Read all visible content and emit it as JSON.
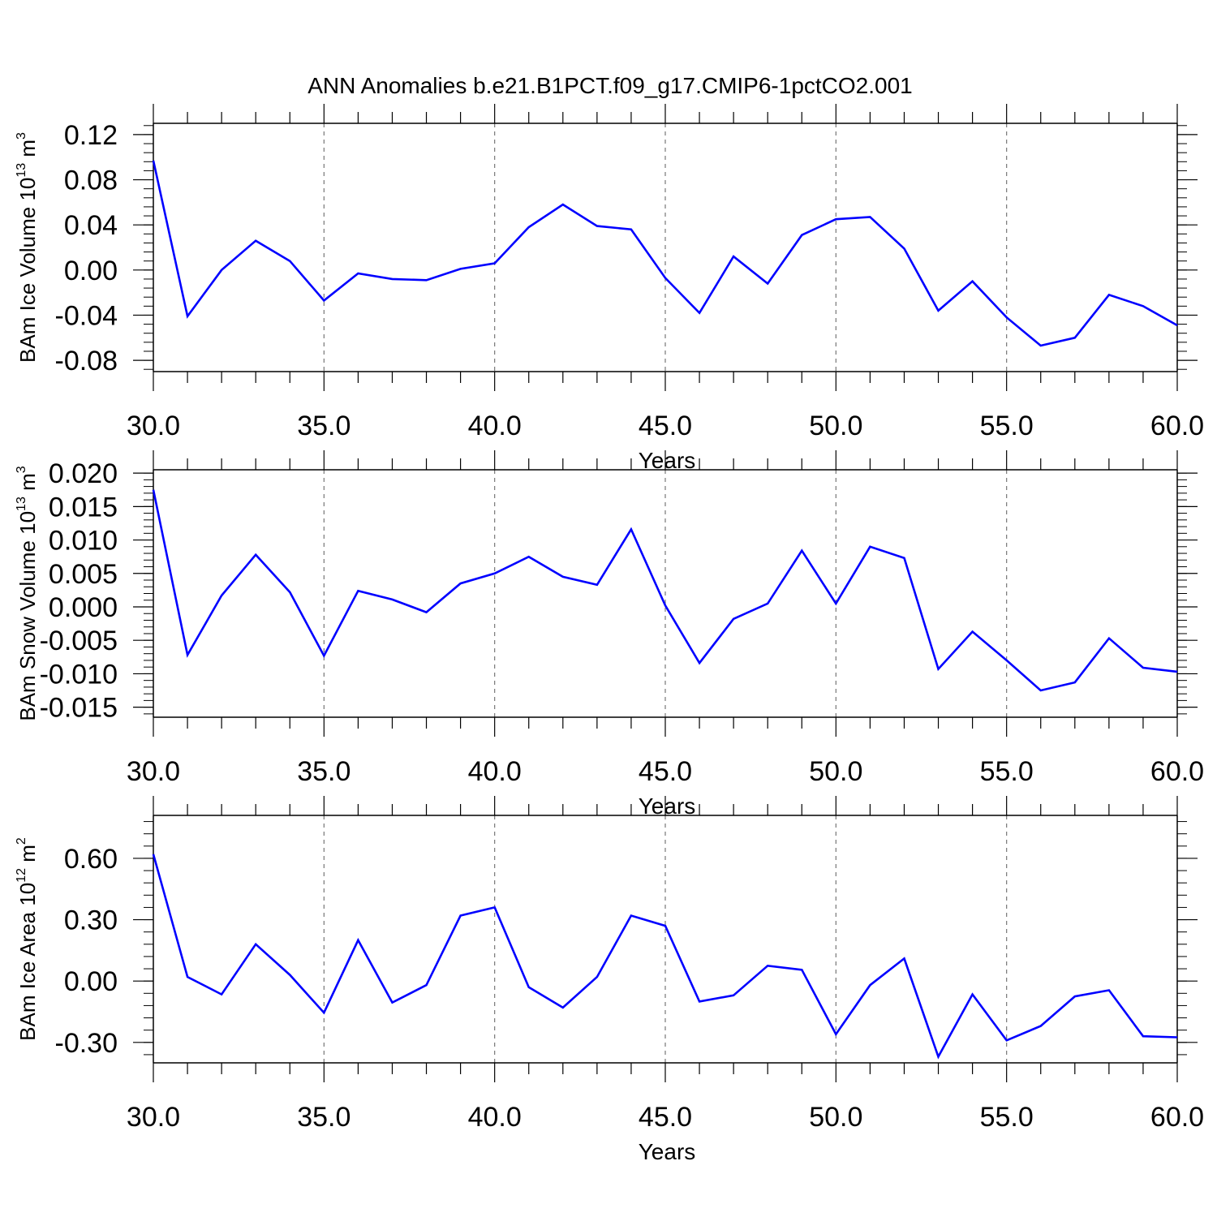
{
  "figure": {
    "title": "ANN Anomalies b.e21.B1PCT.f09_g17.CMIP6-1pctCO2.001",
    "line_color": "#0000ff",
    "grid_color": "#777777"
  },
  "chart_data": [
    {
      "type": "line",
      "title": "",
      "xlabel": "Years",
      "ylabel": {
        "base": "BAm Ice Volume 10",
        "exp": "13",
        "unit": " m",
        "unit_exp": "3"
      },
      "xlim": [
        30,
        60
      ],
      "ylim": [
        -0.09,
        0.13
      ],
      "x_ticks": [
        30,
        35,
        40,
        45,
        50,
        55,
        60
      ],
      "x_tick_labels": [
        "30.0",
        "35.0",
        "40.0",
        "45.0",
        "50.0",
        "55.0",
        "60.0"
      ],
      "y_ticks": [
        0.12,
        0.08,
        0.04,
        0.0,
        -0.04,
        -0.08
      ],
      "y_tick_labels": [
        "0.12",
        "0.08",
        "0.04",
        "0.00",
        "-0.04",
        "-0.08"
      ],
      "grid_x": true,
      "series": [
        {
          "x": [
            30,
            31,
            32,
            33,
            34,
            35,
            36,
            37,
            38,
            39,
            40,
            41,
            42,
            43,
            44,
            45,
            46,
            47,
            48,
            49,
            50,
            51,
            52,
            53,
            54,
            55,
            56,
            57,
            58,
            59,
            60
          ],
          "y": [
            0.097,
            -0.041,
            0.0,
            0.026,
            0.008,
            -0.027,
            -0.003,
            -0.008,
            -0.009,
            0.001,
            0.006,
            0.038,
            0.058,
            0.039,
            0.036,
            -0.007,
            -0.038,
            0.012,
            -0.012,
            0.031,
            0.045,
            0.047,
            0.019,
            -0.036,
            -0.01,
            -0.042,
            -0.067,
            -0.06,
            -0.022,
            -0.032,
            -0.049
          ]
        }
      ]
    },
    {
      "type": "line",
      "title": "",
      "xlabel": "Years",
      "ylabel": {
        "base": "BAm Snow Volume 10",
        "exp": "13",
        "unit": " m",
        "unit_exp": "3"
      },
      "xlim": [
        30,
        60
      ],
      "ylim": [
        -0.0165,
        0.0205
      ],
      "x_ticks": [
        30,
        35,
        40,
        45,
        50,
        55,
        60
      ],
      "x_tick_labels": [
        "30.0",
        "35.0",
        "40.0",
        "45.0",
        "50.0",
        "55.0",
        "60.0"
      ],
      "y_ticks": [
        0.02,
        0.015,
        0.01,
        0.005,
        0.0,
        -0.005,
        -0.01,
        -0.015
      ],
      "y_tick_labels": [
        "0.020",
        "0.015",
        "0.010",
        "0.005",
        "0.000",
        "-0.005",
        "-0.010",
        "-0.015"
      ],
      "grid_x": true,
      "series": [
        {
          "x": [
            30,
            31,
            32,
            33,
            34,
            35,
            36,
            37,
            38,
            39,
            40,
            41,
            42,
            43,
            44,
            45,
            46,
            47,
            48,
            49,
            50,
            51,
            52,
            53,
            54,
            55,
            56,
            57,
            58,
            59,
            60
          ],
          "y": [
            0.0175,
            -0.0072,
            0.0017,
            0.0078,
            0.0022,
            -0.0073,
            0.0024,
            0.0011,
            -0.0008,
            0.0035,
            0.005,
            0.0075,
            0.0045,
            0.0033,
            0.0116,
            0.0002,
            -0.0084,
            -0.0018,
            0.0005,
            0.0084,
            0.0005,
            0.009,
            0.0073,
            -0.0093,
            -0.0037,
            -0.008,
            -0.0125,
            -0.0113,
            -0.0047,
            -0.0091,
            -0.0097
          ]
        }
      ]
    },
    {
      "type": "line",
      "title": "",
      "xlabel": "Years",
      "ylabel": {
        "base": "BAm Ice Area 10",
        "exp": "12",
        "unit": " m",
        "unit_exp": "2"
      },
      "xlim": [
        30,
        60
      ],
      "ylim": [
        -0.4,
        0.81
      ],
      "x_ticks": [
        30,
        35,
        40,
        45,
        50,
        55,
        60
      ],
      "x_tick_labels": [
        "30.0",
        "35.0",
        "40.0",
        "45.0",
        "50.0",
        "55.0",
        "60.0"
      ],
      "y_ticks": [
        0.6,
        0.3,
        0.0,
        -0.3
      ],
      "y_tick_labels": [
        "0.60",
        "0.30",
        "0.00",
        "-0.30"
      ],
      "grid_x": true,
      "series": [
        {
          "x": [
            30,
            31,
            32,
            33,
            34,
            35,
            36,
            37,
            38,
            39,
            40,
            41,
            42,
            43,
            44,
            45,
            46,
            47,
            48,
            49,
            50,
            51,
            52,
            53,
            54,
            55,
            56,
            57,
            58,
            59,
            60
          ],
          "y": [
            0.62,
            0.02,
            -0.065,
            0.18,
            0.03,
            -0.155,
            0.2,
            -0.105,
            -0.02,
            0.32,
            0.36,
            -0.03,
            -0.13,
            0.02,
            0.32,
            0.27,
            -0.1,
            -0.07,
            0.075,
            0.055,
            -0.26,
            -0.02,
            0.11,
            -0.37,
            -0.065,
            -0.29,
            -0.22,
            -0.075,
            -0.045,
            -0.27,
            -0.275
          ]
        }
      ]
    }
  ]
}
